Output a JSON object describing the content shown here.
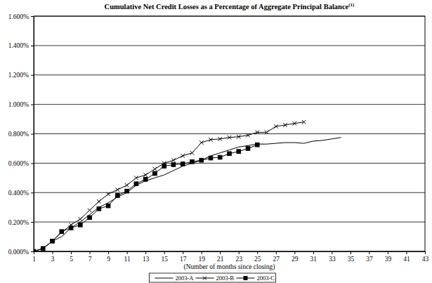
{
  "chart_data": {
    "type": "line",
    "title": "Cumulative Net Credit Losses as a Percentage of Aggregate Principal Balance",
    "title_footnote": "(1)",
    "x_label": "(Number of months since closing)",
    "x": [
      1,
      2,
      3,
      4,
      5,
      6,
      7,
      8,
      9,
      10,
      11,
      12,
      13,
      14,
      15,
      16,
      17,
      18,
      19,
      20,
      21,
      22,
      23,
      24,
      25,
      26,
      27,
      28,
      29,
      30,
      31,
      32,
      33,
      34
    ],
    "series": [
      {
        "name": "2003-A",
        "color": "#000000",
        "marker": "none",
        "line_style": "solid",
        "values": [
          0,
          0.02,
          0.07,
          0.1,
          0.16,
          0.2,
          0.25,
          0.3,
          0.33,
          0.37,
          0.4,
          0.45,
          0.48,
          0.5,
          0.52,
          0.55,
          0.58,
          0.6,
          0.62,
          0.65,
          0.67,
          0.69,
          0.71,
          0.72,
          0.73,
          0.73,
          0.735,
          0.74,
          0.74,
          0.735,
          0.75,
          0.755,
          0.765,
          0.775
        ]
      },
      {
        "name": "2003-B",
        "color": "#000000",
        "marker": "x",
        "line_style": "solid",
        "values": [
          0,
          0.02,
          0.07,
          0.13,
          0.18,
          0.22,
          0.28,
          0.34,
          0.39,
          0.42,
          0.45,
          0.5,
          0.52,
          0.56,
          0.6,
          0.62,
          0.65,
          0.67,
          0.74,
          0.76,
          0.765,
          0.775,
          0.78,
          0.79,
          0.81,
          0.81,
          0.85,
          0.86,
          0.87,
          0.88,
          null,
          null,
          null,
          null
        ]
      },
      {
        "name": "2003-C",
        "color": "#000000",
        "marker": "square",
        "line_style": "solid",
        "values": [
          0,
          0.02,
          0.07,
          0.135,
          0.16,
          0.18,
          0.23,
          0.29,
          0.31,
          0.38,
          0.41,
          0.46,
          0.49,
          0.53,
          0.58,
          0.59,
          0.595,
          0.61,
          0.62,
          0.635,
          0.64,
          0.665,
          0.68,
          0.7,
          0.725,
          null,
          null,
          null,
          null,
          null,
          null,
          null,
          null,
          null
        ]
      }
    ],
    "xlim": [
      1,
      43
    ],
    "xticks": [
      1,
      3,
      5,
      7,
      9,
      11,
      13,
      15,
      17,
      19,
      21,
      23,
      25,
      27,
      29,
      31,
      33,
      35,
      37,
      39,
      41,
      43
    ],
    "ylim": [
      0,
      1.6
    ],
    "yticks": [
      {
        "value": 0,
        "label": "0.000%"
      },
      {
        "value": 0.2,
        "label": "0.200%"
      },
      {
        "value": 0.4,
        "label": "0.400%"
      },
      {
        "value": 0.6,
        "label": "0.600%"
      },
      {
        "value": 0.8,
        "label": "0.800%"
      },
      {
        "value": 1.0,
        "label": "1.000%"
      },
      {
        "value": 1.2,
        "label": "1.200%"
      },
      {
        "value": 1.4,
        "label": "1.400%"
      },
      {
        "value": 1.6,
        "label": "1.600%"
      }
    ],
    "grid": true,
    "legend": "bottom"
  }
}
